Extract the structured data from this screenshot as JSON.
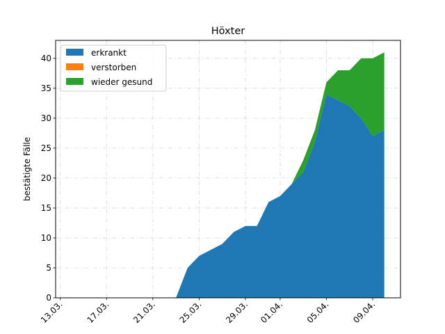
{
  "chart_data": {
    "type": "area",
    "stacked": true,
    "title": "Höxter",
    "xlabel": "",
    "ylabel": "bestätigte Fälle",
    "x_tick_labels": [
      "13.03.",
      "17.03.",
      "21.03.",
      "25.03.",
      "29.03.",
      "01.04.",
      "05.04.",
      "09.04."
    ],
    "x_tick_days": [
      0,
      4,
      8,
      12,
      16,
      19,
      23,
      27
    ],
    "xlim": [
      -0.4,
      29.4
    ],
    "ylim": [
      0,
      43
    ],
    "y_ticks": [
      0,
      5,
      10,
      15,
      20,
      25,
      30,
      35,
      40
    ],
    "grid": true,
    "legend_position": "top-left",
    "x": [
      "13.03.",
      "14.03.",
      "15.03.",
      "16.03.",
      "17.03.",
      "18.03.",
      "19.03.",
      "20.03.",
      "21.03.",
      "22.03.",
      "23.03.",
      "24.03.",
      "25.03.",
      "26.03.",
      "27.03.",
      "28.03.",
      "29.03.",
      "30.03.",
      "31.03.",
      "01.04.",
      "02.04.",
      "03.04.",
      "04.04.",
      "05.04.",
      "06.04.",
      "07.04.",
      "08.04.",
      "09.04.",
      "10.04."
    ],
    "series": [
      {
        "name": "erkrankt",
        "color": "#1f77b4",
        "values": [
          0,
          0,
          0,
          0,
          0,
          0,
          0,
          0,
          0,
          0,
          0,
          5,
          7,
          8,
          9,
          11,
          12,
          12,
          16,
          17,
          19,
          21,
          26,
          34,
          33,
          32,
          30,
          27,
          28
        ]
      },
      {
        "name": "verstorben",
        "color": "#ff7f0e",
        "values": [
          0,
          0,
          0,
          0,
          0,
          0,
          0,
          0,
          0,
          0,
          0,
          0,
          0,
          0,
          0,
          0,
          0,
          0,
          0,
          0,
          0,
          0,
          0,
          0,
          0,
          0,
          0,
          0,
          0
        ]
      },
      {
        "name": "wieder gesund",
        "color": "#2ca02c",
        "values": [
          0,
          0,
          0,
          0,
          0,
          0,
          0,
          0,
          0,
          0,
          0,
          0,
          0,
          0,
          0,
          0,
          0,
          0,
          0,
          0,
          0,
          2,
          2,
          2,
          5,
          6,
          10,
          13,
          13
        ]
      }
    ]
  }
}
